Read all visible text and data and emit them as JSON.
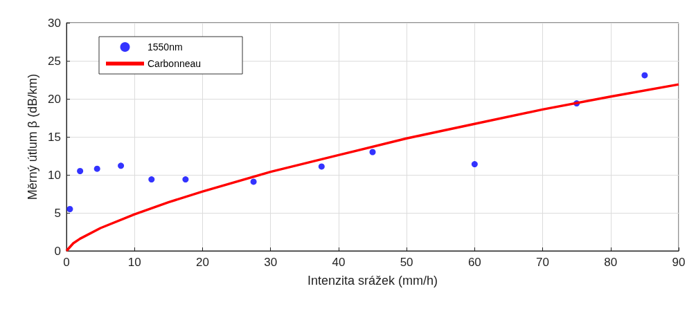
{
  "chart_data": {
    "type": "scatter",
    "xlabel": "Intenzita srážek (mm/h)",
    "ylabel": "Měrný útlum β (dB/km)",
    "xlim": [
      0,
      90
    ],
    "xticks": [
      0,
      10,
      20,
      30,
      40,
      50,
      60,
      70,
      80,
      90
    ],
    "ylim": [
      0,
      30
    ],
    "yticks": [
      0,
      5,
      10,
      15,
      20,
      25,
      30
    ],
    "grid": true,
    "legend": "top left",
    "series": [
      {
        "name": "1550nm",
        "marker": "circle",
        "color": "#0000ff",
        "x": [
          0.5,
          2,
          4.5,
          8,
          12.5,
          17.5,
          27.5,
          37.5,
          45,
          60,
          75,
          85
        ],
        "values": [
          5.5,
          10.5,
          10.8,
          11.2,
          9.4,
          9.4,
          9.1,
          11.1,
          13,
          11.4,
          19.4,
          23.1
        ]
      },
      {
        "name": "Carbonneau",
        "type": "line",
        "marker": "none",
        "color": "#ff0000",
        "x": [
          0,
          1,
          2,
          5,
          10,
          15,
          20,
          30,
          40,
          50,
          60,
          70,
          80,
          90
        ],
        "values": [
          0,
          1.0,
          1.6,
          3.0,
          4.8,
          6.4,
          7.8,
          10.4,
          12.6,
          14.8,
          16.7,
          18.6,
          20.3,
          21.9
        ]
      }
    ]
  }
}
